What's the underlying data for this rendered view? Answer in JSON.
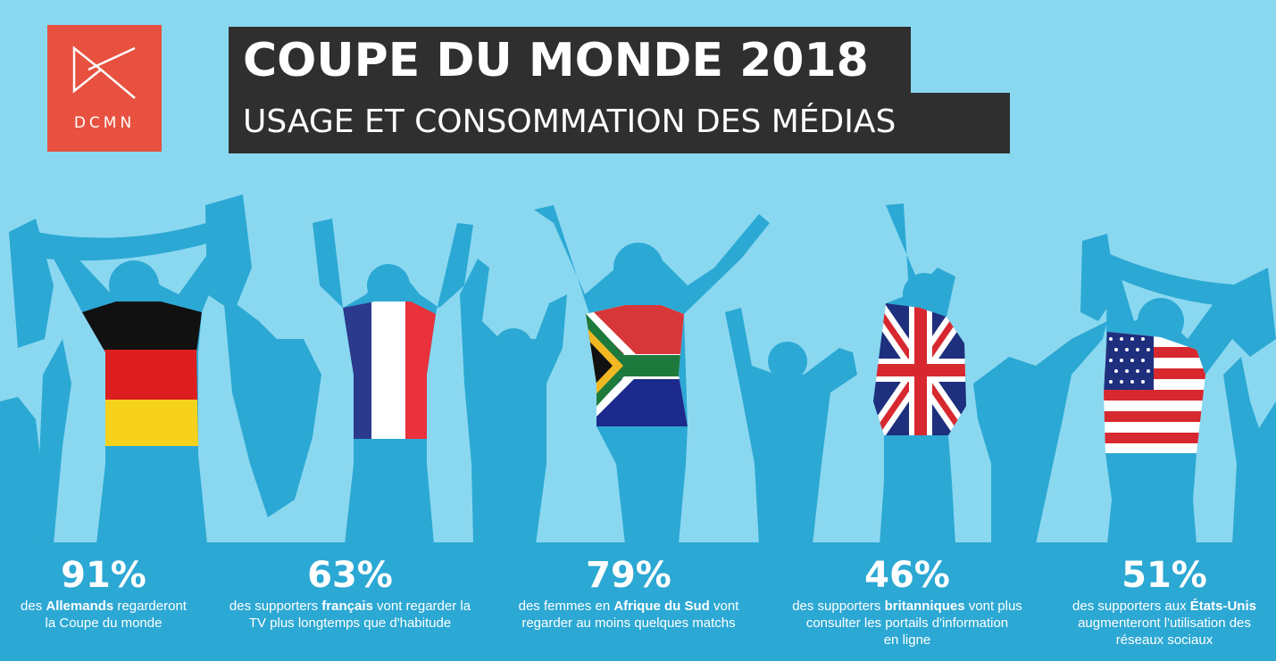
{
  "logo": {
    "text": "DCMN"
  },
  "header": {
    "title": "COUPE DU MONDE 2018",
    "subtitle": "USAGE ET CONSOMMATION DES MÉDIAS"
  },
  "colors": {
    "background": "#8ad8f0",
    "silhouettes": "#2ca8d4",
    "band": "#2ca8d4",
    "logo": "#e8503f",
    "title_box": "#2f2f2f"
  },
  "stats": [
    {
      "value": "91%",
      "pre": "des ",
      "bold": "Allemands",
      "post": " regarderont",
      "line2": "la Coupe du monde",
      "line3": ""
    },
    {
      "value": "63%",
      "pre": "des supporters ",
      "bold": "français",
      "post": " vont regarder la",
      "line2": "TV plus longtemps que d'habitude",
      "line3": ""
    },
    {
      "value": "79%",
      "pre": "des femmes en ",
      "bold": "Afrique du Sud",
      "post": " vont",
      "line2": "regarder au moins quelques matchs",
      "line3": ""
    },
    {
      "value": "46%",
      "pre": "des supporters ",
      "bold": "britanniques",
      "post": " vont plus",
      "line2": "consulter les portails d'information",
      "line3": "en ligne"
    },
    {
      "value": "51%",
      "pre": "des supporters aux ",
      "bold": "États-Unis",
      "post": "",
      "line2": "augmenteront l'utilisation des",
      "line3": "réseaux sociaux"
    }
  ],
  "flags": [
    "germany-flag",
    "france-flag",
    "south-africa-flag",
    "uk-flag",
    "usa-flag"
  ]
}
